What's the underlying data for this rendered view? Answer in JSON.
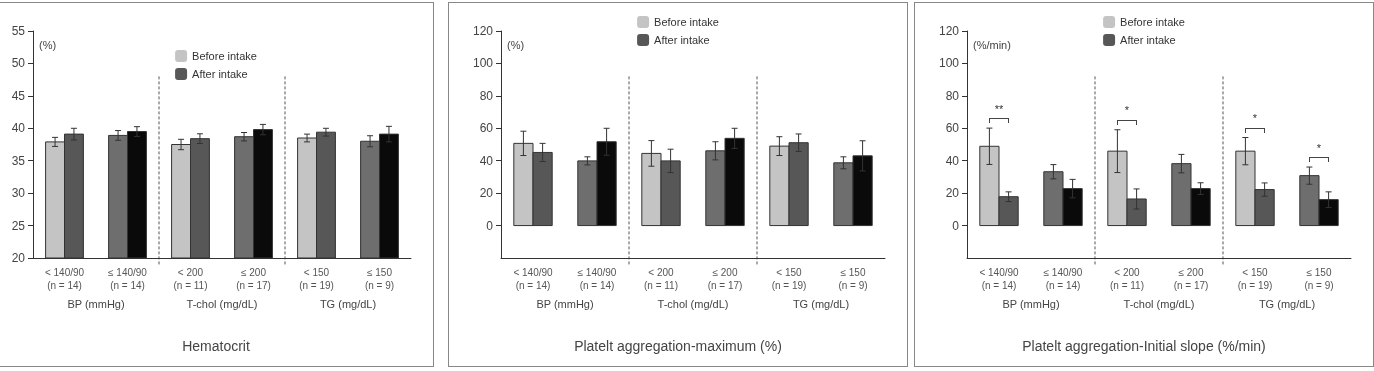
{
  "chart_data": [
    {
      "type": "bar",
      "title": "Hematocrit",
      "ylabel": "(%)",
      "categories": [
        "< 140/90\n(n = 14)",
        "≤ 140/90\n(n = 14)",
        "< 200\n(n = 11)",
        "≤ 200\n(n = 17)",
        "< 150\n(n = 19)",
        "≤ 150\n(n = 9)"
      ],
      "series": [
        {
          "name": "Before intake",
          "colors": [
            "#c4c4c4",
            "#6e6e6e",
            "#c4c4c4",
            "#6e6e6e",
            "#c4c4c4",
            "#6e6e6e"
          ],
          "values": [
            37.9,
            38.9,
            37.5,
            38.7,
            38.5,
            38.0
          ],
          "errors": [
            0.7,
            0.75,
            0.8,
            0.65,
            0.6,
            0.85
          ]
        },
        {
          "name": "After intake",
          "colors": [
            "#575757",
            "#0a0a0a",
            "#575757",
            "#0a0a0a",
            "#575757",
            "#0a0a0a"
          ],
          "values": [
            39.1,
            39.5,
            38.4,
            39.8,
            39.4,
            39.1
          ],
          "errors": [
            0.9,
            0.75,
            0.75,
            0.8,
            0.6,
            1.2
          ]
        }
      ],
      "ylim": [
        20,
        55
      ],
      "yticks": [
        20,
        25,
        30,
        35,
        40,
        45,
        50,
        55
      ],
      "grid": false,
      "legend": "top",
      "annotations": [
        "BP (mmHg)",
        "T-chol (mg/dL)",
        "TG (mg/dL)"
      ]
    },
    {
      "type": "bar",
      "title": "Platelt aggregation-maximum (%)",
      "ylabel": "(%)",
      "categories": [
        "< 140/90\n(n = 14)",
        "≤ 140/90\n(n = 14)",
        "< 200\n(n = 11)",
        "≤ 200\n(n = 17)",
        "< 150\n(n = 19)",
        "≤ 150\n(n = 9)"
      ],
      "series": [
        {
          "name": "Before intake",
          "colors": [
            "#c4c4c4",
            "#6e6e6e",
            "#c4c4c4",
            "#6e6e6e",
            "#c4c4c4",
            "#6e6e6e"
          ],
          "values": [
            50.7,
            39.9,
            44.5,
            46.1,
            49.0,
            38.7
          ],
          "errors": [
            7.5,
            2.5,
            7.9,
            5.6,
            5.8,
            3.7
          ]
        },
        {
          "name": "After intake",
          "colors": [
            "#575757",
            "#0a0a0a",
            "#575757",
            "#0a0a0a",
            "#575757",
            "#0a0a0a"
          ],
          "values": [
            45.1,
            51.7,
            39.9,
            53.8,
            51.1,
            43.0
          ],
          "errors": [
            5.6,
            8.3,
            7.2,
            6.2,
            5.4,
            9.3
          ]
        }
      ],
      "ylim": [
        -20,
        120
      ],
      "yticks": [
        0,
        20,
        40,
        60,
        80,
        100,
        120
      ],
      "grid": false,
      "legend": "top",
      "annotations": [
        "BP (mmHg)",
        "T-chol (mg/dL)",
        "TG (mg/dL)"
      ]
    },
    {
      "type": "bar",
      "title": "Platelt aggregation-Initial slope (%/min)",
      "ylabel": "(%/min)",
      "categories": [
        "< 140/90\n(n = 14)",
        "≤ 140/90\n(n = 14)",
        "< 200\n(n = 11)",
        "≤ 200\n(n = 17)",
        "< 150\n(n = 19)",
        "≤ 150\n(n = 9)"
      ],
      "series": [
        {
          "name": "Before intake",
          "colors": [
            "#c4c4c4",
            "#6e6e6e",
            "#c4c4c4",
            "#6e6e6e",
            "#c4c4c4",
            "#6e6e6e"
          ],
          "values": [
            48.9,
            33.2,
            45.9,
            38.2,
            45.9,
            30.8
          ],
          "errors": [
            11.2,
            4.4,
            13.2,
            5.7,
            8.4,
            5.3
          ]
        },
        {
          "name": "After intake",
          "colors": [
            "#575757",
            "#0a0a0a",
            "#575757",
            "#0a0a0a",
            "#575757",
            "#0a0a0a"
          ],
          "values": [
            17.8,
            22.8,
            16.4,
            22.8,
            22.2,
            16.0
          ],
          "errors": [
            3.0,
            5.7,
            6.2,
            3.6,
            4.1,
            4.8
          ]
        }
      ],
      "ylim": [
        -20,
        120
      ],
      "yticks": [
        0,
        20,
        40,
        60,
        80,
        100,
        120
      ],
      "grid": false,
      "legend": "top",
      "annotations": [
        "BP (mmHg)",
        "T-chol (mg/dL)",
        "TG (mg/dL)",
        "**",
        "*",
        "*",
        "*"
      ]
    }
  ]
}
